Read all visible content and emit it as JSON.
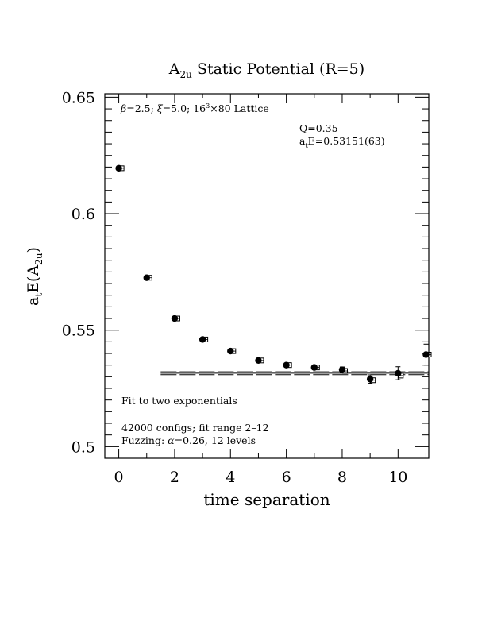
{
  "chart_data": {
    "type": "scatter",
    "title": {
      "main": "A",
      "sub": "2u",
      "rest": " Static Potential (R=5)"
    },
    "xlabel": "time separation",
    "ylabel": {
      "pre": "a",
      "pre_sub": "t",
      "mid": "E(A",
      "mid_sub": "2u",
      "post": ")"
    },
    "xlim": [
      -0.5,
      11.1
    ],
    "ylim": [
      0.495,
      0.6515
    ],
    "x_ticks": [
      0,
      2,
      4,
      6,
      8,
      10
    ],
    "y_ticks": [
      0.5,
      0.55,
      0.6,
      0.65
    ],
    "y_tick_labels": [
      "0.5",
      "0.55",
      "0.6",
      "0.65"
    ],
    "annotations": {
      "lattice": {
        "beta": "β",
        "p1": "=2.5; ",
        "xi": "ξ",
        "p2": "=5.0; 16",
        "sup": "3",
        "p3": "×80 Lattice"
      },
      "q": "Q=0.35",
      "energy": {
        "pre": "a",
        "sub": "t",
        "post": "E=0.53151(63)"
      },
      "fit": "Fit to two exponentials",
      "configs": "42000 configs; fit range 2–12",
      "fuzzing": {
        "pre": "Fuzzing: ",
        "alpha": "α",
        "post": "=0.26, 12 levels"
      }
    },
    "series": [
      {
        "marker": "filled-circle",
        "x": [
          0,
          1,
          2,
          3,
          4,
          5,
          6,
          7,
          8,
          9,
          10,
          11
        ],
        "y": [
          0.6195,
          0.5725,
          0.555,
          0.546,
          0.541,
          0.537,
          0.535,
          0.534,
          0.533,
          0.529,
          0.5315,
          0.5395
        ],
        "err": [
          0.0006,
          0.0006,
          0.0006,
          0.0006,
          0.0007,
          0.0007,
          0.0008,
          0.0009,
          0.0012,
          0.0018,
          0.0028,
          0.0045
        ]
      },
      {
        "marker": "open-square",
        "x": [
          0.1,
          1.1,
          2.1,
          3.1,
          4.1,
          5.1,
          6.1,
          7.1,
          8.1,
          9.1,
          10.1,
          11.1
        ],
        "y": [
          0.6195,
          0.5725,
          0.555,
          0.546,
          0.541,
          0.537,
          0.535,
          0.534,
          0.5325,
          0.5285,
          0.5305,
          0.5395
        ]
      }
    ],
    "fit": {
      "x_range": [
        1.5,
        11.1
      ],
      "value": 0.53151,
      "error": 0.00063
    }
  }
}
